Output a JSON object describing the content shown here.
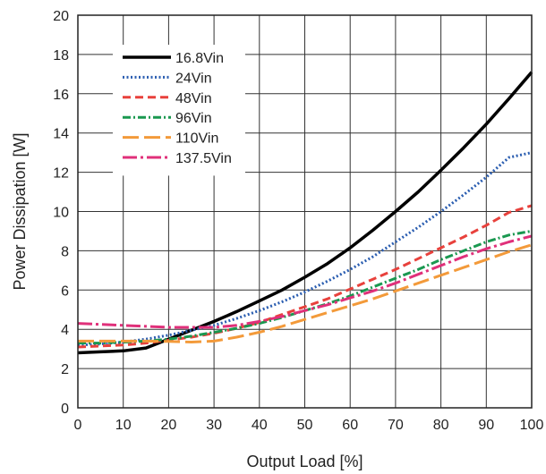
{
  "chart_data": {
    "type": "line",
    "title": "",
    "xlabel": "Output Load [%]",
    "ylabel": "Power Dissipation [W]",
    "xlim": [
      0,
      100
    ],
    "ylim": [
      0,
      20
    ],
    "x_ticks": [
      "0",
      "10",
      "20",
      "30",
      "40",
      "50",
      "60",
      "70",
      "80",
      "90",
      "100"
    ],
    "y_ticks": [
      "0",
      "2",
      "4",
      "6",
      "8",
      "10",
      "12",
      "14",
      "16",
      "18",
      "20"
    ],
    "grid": true,
    "legend_position": "top-left",
    "x": [
      0,
      5,
      10,
      15,
      20,
      25,
      30,
      35,
      40,
      45,
      50,
      55,
      60,
      65,
      70,
      75,
      80,
      85,
      90,
      95,
      100
    ],
    "series": [
      {
        "name": "16.8Vin",
        "color": "#000000",
        "dash": "solid",
        "values": [
          2.8,
          2.85,
          2.9,
          3.05,
          3.5,
          3.95,
          4.4,
          4.9,
          5.45,
          6.0,
          6.65,
          7.35,
          8.15,
          9.05,
          10.0,
          11.0,
          12.1,
          13.25,
          14.45,
          15.75,
          17.1
        ]
      },
      {
        "name": "24Vin",
        "color": "#2a5db0",
        "dash": "dotted",
        "values": [
          3.2,
          3.25,
          3.35,
          3.5,
          3.7,
          3.95,
          4.2,
          4.55,
          4.95,
          5.4,
          5.9,
          6.45,
          7.05,
          7.7,
          8.45,
          9.2,
          10.0,
          10.85,
          11.75,
          12.75,
          13.0
        ]
      },
      {
        "name": "48Vin",
        "color": "#e8413c",
        "dash": "dashed",
        "values": [
          3.1,
          3.15,
          3.2,
          3.3,
          3.45,
          3.6,
          3.8,
          4.05,
          4.35,
          4.75,
          5.15,
          5.55,
          6.05,
          6.55,
          7.05,
          7.6,
          8.15,
          8.7,
          9.3,
          9.95,
          10.3
        ]
      },
      {
        "name": "96Vin",
        "color": "#1a9850",
        "dash": "dash-dot",
        "values": [
          3.3,
          3.3,
          3.35,
          3.4,
          3.5,
          3.65,
          3.85,
          4.05,
          4.3,
          4.6,
          4.95,
          5.3,
          5.7,
          6.15,
          6.6,
          7.05,
          7.55,
          8.0,
          8.45,
          8.8,
          9.0
        ]
      },
      {
        "name": "110Vin",
        "color": "#f39a3a",
        "dash": "long-dash",
        "values": [
          3.4,
          3.4,
          3.4,
          3.4,
          3.38,
          3.35,
          3.4,
          3.6,
          3.85,
          4.15,
          4.5,
          4.85,
          5.2,
          5.55,
          5.95,
          6.35,
          6.75,
          7.15,
          7.55,
          7.95,
          8.3
        ]
      },
      {
        "name": "137.5Vin",
        "color": "#e0307a",
        "dash": "long-dash-dot",
        "values": [
          4.3,
          4.25,
          4.2,
          4.15,
          4.1,
          4.1,
          4.1,
          4.2,
          4.4,
          4.65,
          4.95,
          5.25,
          5.6,
          5.95,
          6.35,
          6.8,
          7.25,
          7.7,
          8.1,
          8.45,
          8.75
        ]
      }
    ]
  }
}
